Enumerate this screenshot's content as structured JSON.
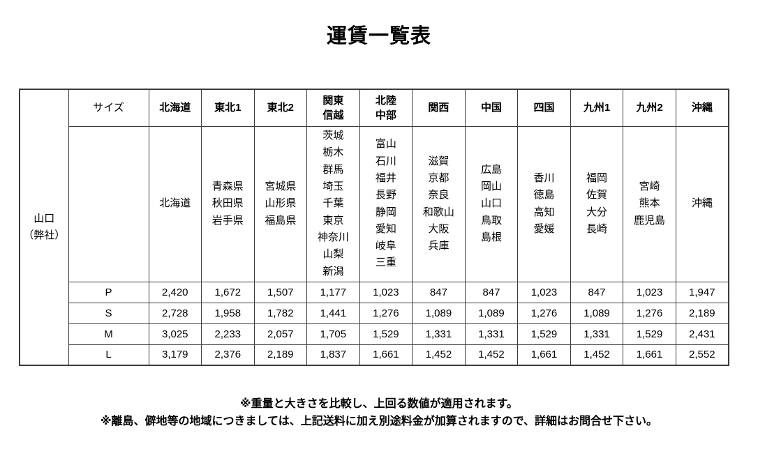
{
  "title": "運賃一覧表",
  "origin_label": "山口\n（弊社）",
  "size_header": "サイズ",
  "colors": {
    "origin_green": "#ccf24b",
    "column_yellow": "#ffffcc",
    "border_dark": "#3b3b3b"
  },
  "table": {
    "columns": [
      {
        "label": "北海道",
        "highlight": true,
        "prefectures": [
          "北海道"
        ]
      },
      {
        "label": "東北1",
        "highlight": false,
        "prefectures": [
          "青森県",
          "秋田県",
          "岩手県"
        ]
      },
      {
        "label": "東北2",
        "highlight": true,
        "prefectures": [
          "宮城県",
          "山形県",
          "福島県"
        ]
      },
      {
        "label": "関東\n信越",
        "highlight": false,
        "prefectures": [
          "茨城",
          "栃木",
          "群馬",
          "埼玉",
          "千葉",
          "東京",
          "神奈川",
          "山梨",
          "新潟"
        ]
      },
      {
        "label": "北陸\n中部",
        "highlight": true,
        "prefectures": [
          "富山",
          "石川",
          "福井",
          "長野",
          "静岡",
          "愛知",
          "岐阜",
          "三重"
        ]
      },
      {
        "label": "関西",
        "highlight": false,
        "prefectures": [
          "滋賀",
          "京都",
          "奈良",
          "和歌山",
          "大阪",
          "兵庫"
        ]
      },
      {
        "label": "中国",
        "highlight": true,
        "prefectures": [
          "広島",
          "岡山",
          "山口",
          "鳥取",
          "島根"
        ]
      },
      {
        "label": "四国",
        "highlight": false,
        "prefectures": [
          "香川",
          "徳島",
          "高知",
          "愛媛"
        ]
      },
      {
        "label": "九州1",
        "highlight": true,
        "prefectures": [
          "福岡",
          "佐賀",
          "大分",
          "長崎"
        ]
      },
      {
        "label": "九州2",
        "highlight": false,
        "prefectures": [
          "宮崎",
          "熊本",
          "鹿児島"
        ]
      },
      {
        "label": "沖縄",
        "highlight": true,
        "prefectures": [
          "沖縄"
        ]
      }
    ],
    "rows": [
      {
        "size": "P",
        "values": [
          "2,420",
          "1,672",
          "1,507",
          "1,177",
          "1,023",
          "847",
          "847",
          "1,023",
          "847",
          "1,023",
          "1,947"
        ]
      },
      {
        "size": "S",
        "values": [
          "2,728",
          "1,958",
          "1,782",
          "1,441",
          "1,276",
          "1,089",
          "1,089",
          "1,276",
          "1,089",
          "1,276",
          "2,189"
        ]
      },
      {
        "size": "M",
        "values": [
          "3,025",
          "2,233",
          "2,057",
          "1,705",
          "1,529",
          "1,331",
          "1,331",
          "1,529",
          "1,331",
          "1,529",
          "2,431"
        ]
      },
      {
        "size": "L",
        "values": [
          "3,179",
          "2,376",
          "2,189",
          "1,837",
          "1,661",
          "1,452",
          "1,452",
          "1,661",
          "1,452",
          "1,661",
          "2,552"
        ]
      }
    ]
  },
  "notes": [
    "※重量と大きさを比較し、上回る数値が適用されます。",
    "※離島、僻地等の地域につきましては、上記送料に加え別途料金が加算されますので、詳細はお問合せ下さい。"
  ]
}
